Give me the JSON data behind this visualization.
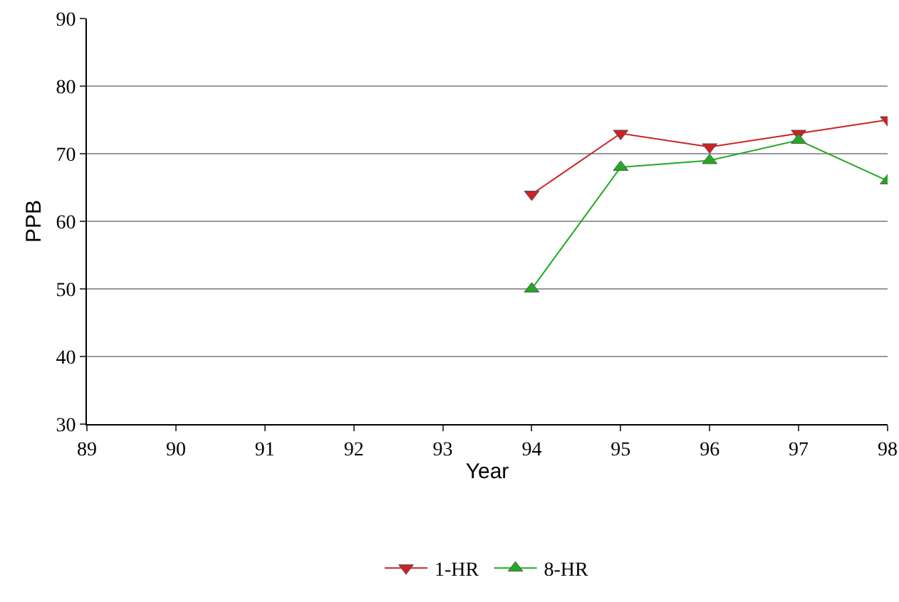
{
  "chart_data": {
    "type": "line",
    "xlabel": "Year",
    "ylabel": "PPB",
    "x": [
      94,
      95,
      96,
      97,
      98
    ],
    "series": [
      {
        "name": "1-HR",
        "color": "#cc2222",
        "values": [
          64,
          73,
          71,
          73,
          75
        ],
        "marker": "triangle-down"
      },
      {
        "name": "8-HR",
        "color": "#22aa22",
        "values": [
          50,
          68,
          69,
          72,
          66
        ],
        "marker": "triangle"
      }
    ],
    "xlim": [
      89,
      98
    ],
    "xticks": [
      89,
      90,
      91,
      92,
      93,
      94,
      95,
      96,
      97,
      98
    ],
    "ylim": [
      30,
      90
    ],
    "yticks": [
      30,
      40,
      50,
      60,
      70,
      80,
      90
    ],
    "grid": "y",
    "legend": "bottom",
    "line_style": "solid"
  }
}
